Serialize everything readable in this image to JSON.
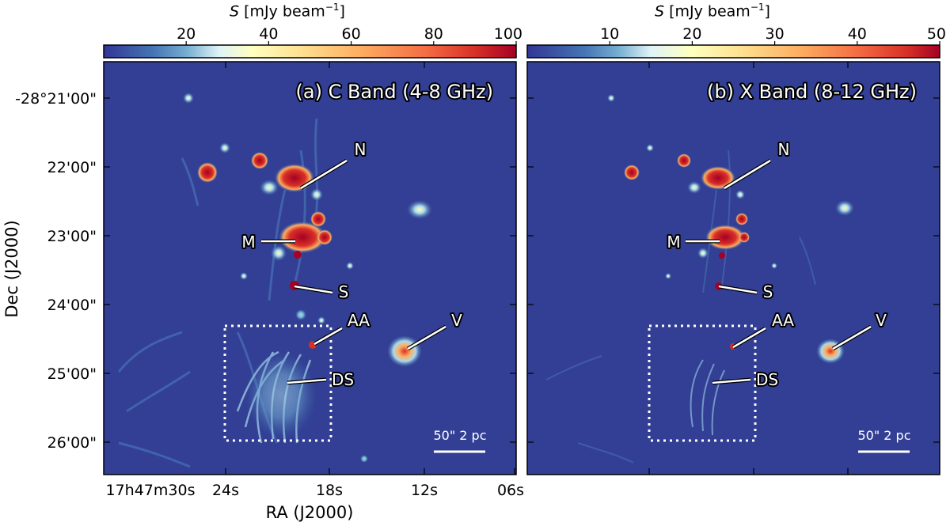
{
  "figure": {
    "colorbar_label": "S [mJy beam⁻¹]",
    "colorbar_label_base": "S [mJy beam",
    "colorbar_label_exp": "−1",
    "panels": [
      {
        "id": "a",
        "title": "(a) C Band (4-8 GHz)",
        "colorbar_ticks": [
          "20",
          "40",
          "60",
          "80",
          "100"
        ],
        "colorbar_tick_values": [
          20,
          40,
          60,
          80,
          100
        ],
        "scalebar_label": "50\" 2 pc",
        "labels": [
          "N",
          "M",
          "S",
          "AA",
          "V",
          "DS"
        ]
      },
      {
        "id": "b",
        "title": "(b) X Band (8-12 GHz)",
        "colorbar_ticks": [
          "10",
          "20",
          "30",
          "40",
          "50"
        ],
        "colorbar_tick_values": [
          10,
          20,
          30,
          40,
          50
        ],
        "scalebar_label": "50\" 2 pc",
        "labels": [
          "N",
          "M",
          "S",
          "AA",
          "V",
          "DS"
        ]
      }
    ],
    "y_axis": {
      "label": "Dec (J2000)",
      "ticks": [
        "-28°21'00\"",
        "22'00\"",
        "23'00\"",
        "24'00\"",
        "25'00\"",
        "26'00\""
      ]
    },
    "x_axis": {
      "label": "RA (J2000)",
      "ticks": [
        "17h47m30s",
        "24s",
        "18s",
        "12s",
        "06s"
      ]
    },
    "colors": {
      "background_map": "#323f94",
      "colormap": [
        "#313695",
        "#4575b4",
        "#74add1",
        "#abd9e9",
        "#e0f3f8",
        "#ffffbf",
        "#fee090",
        "#fdae61",
        "#f46d43",
        "#d73027",
        "#a50026"
      ]
    }
  }
}
